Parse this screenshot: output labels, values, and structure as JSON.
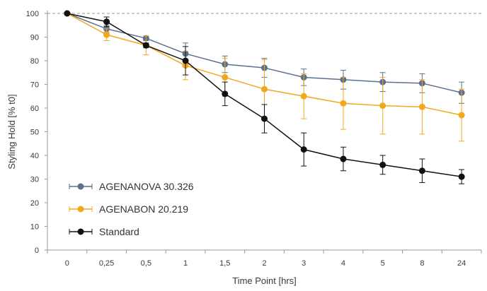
{
  "chart_data": {
    "type": "line",
    "xlabel": "Time Point [hrs]",
    "ylabel": "Styling Hold [% t0]",
    "ylim": [
      0,
      100
    ],
    "yticks": [
      0,
      10,
      20,
      30,
      40,
      50,
      60,
      70,
      80,
      90,
      100
    ],
    "categories": [
      "0",
      "0,25",
      "0,5",
      "1",
      "1,5",
      "2",
      "3",
      "4",
      "5",
      "8",
      "24"
    ],
    "reference_line": 100,
    "legend_position": "bottom-left",
    "series": [
      {
        "name": "AGENANOVA 30.326",
        "color": "#5d6f8f",
        "values": [
          100,
          93.5,
          89.5,
          83,
          78.5,
          77,
          73,
          72,
          71,
          70.5,
          66.5
        ],
        "errors": [
          0,
          1.5,
          1.0,
          4.5,
          3.5,
          4.0,
          3.5,
          4.0,
          4.0,
          4.0,
          4.5
        ]
      },
      {
        "name": "AGENABON 20.219",
        "color": "#f2a81d",
        "values": [
          100,
          91,
          86.5,
          78,
          73,
          68,
          65,
          62,
          61,
          60.5,
          57
        ],
        "errors": [
          0,
          2.5,
          4.0,
          6.0,
          8.0,
          12.5,
          9.5,
          11.0,
          12.0,
          11.5,
          11.0
        ]
      },
      {
        "name": "Standard",
        "color": "#111111",
        "values": [
          100,
          96.5,
          86.5,
          80,
          66,
          55.5,
          42.5,
          38.5,
          36,
          33.5,
          31
        ],
        "errors": [
          0,
          2.0,
          1.0,
          6.0,
          5.0,
          6.0,
          7.0,
          5.0,
          4.0,
          5.0,
          3.0
        ]
      }
    ]
  }
}
